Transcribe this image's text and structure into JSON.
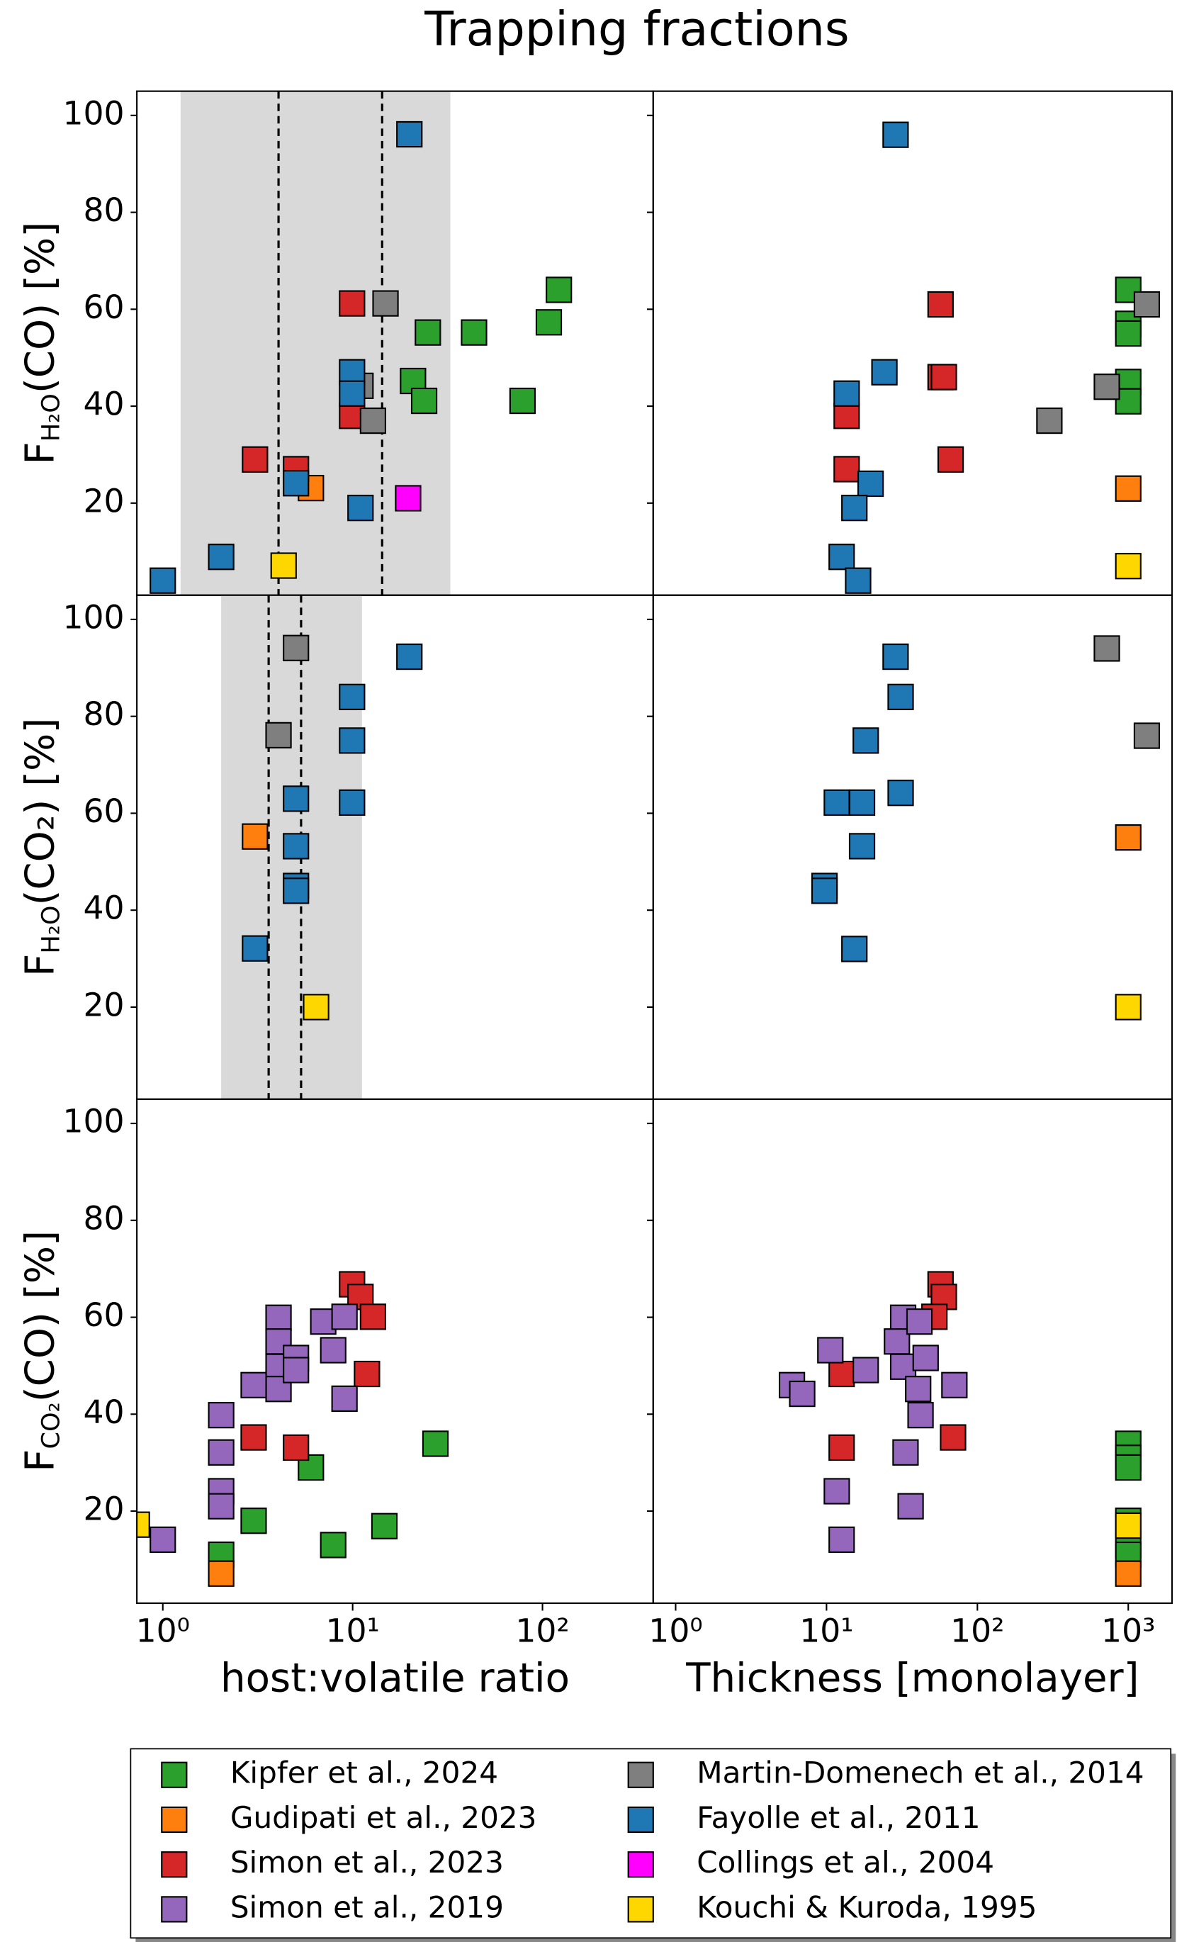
{
  "title": "Trapping fractions",
  "legend": [
    {
      "name": "Kipfer et al., 2024",
      "color": "#2ca02c"
    },
    {
      "name": "Gudipati et al., 2023",
      "color": "#ff7f0e"
    },
    {
      "name": "Simon et al., 2023",
      "color": "#d62728"
    },
    {
      "name": "Simon et al., 2019",
      "color": "#9467bd"
    },
    {
      "name": "Martin-Domenech et al., 2014",
      "color": "#7f7f7f"
    },
    {
      "name": "Fayolle et al., 2011",
      "color": "#1f77b4"
    },
    {
      "name": "Collings et al., 2004",
      "color": "#ff00ff"
    },
    {
      "name": "Kouchi & Kuroda, 1995",
      "color": "#ffd700"
    }
  ],
  "chart_data": [
    {
      "type": "scatter",
      "xlog": true,
      "xlim": [
        0.73,
        383
      ],
      "ylim": [
        1,
        105
      ],
      "yticks": [
        20,
        40,
        60,
        80,
        100
      ],
      "show_ytick_labels": true,
      "ylabel": {
        "main": "F",
        "sub": "H₂O",
        "rest": "(CO) [%]"
      },
      "shaded_region": [
        1.24,
        32.7
      ],
      "dashed_lines": [
        4.07,
        14.3
      ],
      "series": [
        {
          "name": "Kipfer et al., 2024",
          "color": "#2ca02c",
          "x": [
            122,
            108,
            43.6,
            24.9,
            20.8,
            23.8,
            78.5
          ],
          "values": [
            64,
            57.3,
            55.2,
            55.2,
            45.2,
            41.1,
            41.1
          ]
        },
        {
          "name": "Gudipati et al., 2023",
          "color": "#ff7f0e",
          "x": [
            6.03
          ],
          "values": [
            23.1
          ]
        },
        {
          "name": "Simon et al., 2023",
          "color": "#d62728",
          "x": [
            9.93,
            9.93,
            5.03,
            3.06
          ],
          "values": [
            61.2,
            38,
            27,
            29
          ]
        },
        {
          "name": "Martin-Domenech et al., 2014",
          "color": "#7f7f7f",
          "x": [
            14.9,
            11,
            12.8
          ],
          "values": [
            61.2,
            44.2,
            37
          ]
        },
        {
          "name": "Fayolle et al., 2011",
          "color": "#1f77b4",
          "x": [
            19.9,
            9.93,
            9.93,
            5.03,
            11,
            2.03,
            1
          ],
          "values": [
            96.1,
            47,
            42.6,
            24.1,
            19,
            8.9,
            4
          ]
        },
        {
          "name": "Collings et al., 2004",
          "color": "#ff00ff",
          "x": [
            19.6
          ],
          "values": [
            21
          ]
        },
        {
          "name": "Kouchi & Kuroda, 1995",
          "color": "#ffd700",
          "x": [
            4.33
          ],
          "values": [
            7.1
          ]
        }
      ]
    },
    {
      "type": "scatter",
      "xlog": true,
      "xlim": [
        0.71,
        1950
      ],
      "ylim": [
        1,
        105
      ],
      "yticks": [
        20,
        40,
        60,
        80,
        100
      ],
      "show_ytick_labels": false,
      "series": [
        {
          "name": "Kipfer et al., 2024",
          "color": "#2ca02c",
          "x": [
            1000,
            1000,
            1000,
            1000,
            1000
          ],
          "values": [
            64,
            57,
            55,
            45,
            41
          ]
        },
        {
          "name": "Gudipati et al., 2023",
          "color": "#ff7f0e",
          "x": [
            1000
          ],
          "values": [
            23
          ]
        },
        {
          "name": "Simon et al., 2023",
          "color": "#d62728",
          "x": [
            57,
            57,
            60,
            66.5,
            13.6,
            13.6
          ],
          "values": [
            61,
            46,
            46,
            29,
            38,
            27
          ]
        },
        {
          "name": "Martin-Domenech et al., 2014",
          "color": "#7f7f7f",
          "x": [
            1328,
            721,
            300
          ],
          "values": [
            61,
            44,
            37
          ]
        },
        {
          "name": "Fayolle et al., 2011",
          "color": "#1f77b4",
          "x": [
            28.7,
            24.2,
            13.6,
            19.6,
            15.3,
            12.6,
            16.2
          ],
          "values": [
            96,
            47,
            42.6,
            24,
            19,
            8.9,
            4
          ]
        },
        {
          "name": "Kouchi & Kuroda, 1995",
          "color": "#ffd700",
          "x": [
            1000
          ],
          "values": [
            7
          ]
        }
      ]
    },
    {
      "type": "scatter",
      "xlog": true,
      "xlim": [
        0.73,
        383
      ],
      "ylim": [
        1,
        105
      ],
      "yticks": [
        20,
        40,
        60,
        80,
        100
      ],
      "show_ytick_labels": true,
      "ylabel": {
        "main": "F",
        "sub": "H₂O",
        "rest": "(CO₂) [%]"
      },
      "shaded_region": [
        2.03,
        11.2
      ],
      "dashed_lines": [
        3.61,
        5.35
      ],
      "series": [
        {
          "name": "Gudipati et al., 2023",
          "color": "#ff7f0e",
          "x": [
            3.06
          ],
          "values": [
            55.2
          ]
        },
        {
          "name": "Martin-Domenech et al., 2014",
          "color": "#7f7f7f",
          "x": [
            5.03,
            4.07
          ],
          "values": [
            94.1,
            76.1
          ]
        },
        {
          "name": "Fayolle et al., 2011",
          "color": "#1f77b4",
          "x": [
            19.9,
            9.93,
            9.93,
            9.93,
            5.03,
            5.03,
            5.03,
            5.03,
            3.06
          ],
          "values": [
            92.3,
            84,
            75,
            62.2,
            63,
            53.2,
            45,
            44,
            32.1
          ]
        },
        {
          "name": "Kouchi & Kuroda, 1995",
          "color": "#ffd700",
          "x": [
            6.42
          ],
          "values": [
            20
          ]
        }
      ]
    },
    {
      "type": "scatter",
      "xlog": true,
      "xlim": [
        0.71,
        1950
      ],
      "ylim": [
        1,
        105
      ],
      "yticks": [
        20,
        40,
        60,
        80,
        100
      ],
      "show_ytick_labels": false,
      "series": [
        {
          "name": "Gudipati et al., 2023",
          "color": "#ff7f0e",
          "x": [
            1000
          ],
          "values": [
            55
          ]
        },
        {
          "name": "Martin-Domenech et al., 2014",
          "color": "#7f7f7f",
          "x": [
            721,
            1328
          ],
          "values": [
            94,
            76
          ]
        },
        {
          "name": "Fayolle et al., 2011",
          "color": "#1f77b4",
          "x": [
            28.7,
            31,
            18.2,
            11.7,
            17.2,
            31,
            17.2,
            9.7,
            9.7,
            15.3
          ],
          "values": [
            92.3,
            84,
            75,
            62.2,
            62.2,
            64.2,
            53.2,
            45,
            44,
            32
          ]
        },
        {
          "name": "Kouchi & Kuroda, 1995",
          "color": "#ffd700",
          "x": [
            1000
          ],
          "values": [
            20
          ]
        }
      ]
    },
    {
      "type": "scatter",
      "xlog": true,
      "xlim": [
        0.73,
        383
      ],
      "ylim": [
        1,
        105
      ],
      "yticks": [
        20,
        40,
        60,
        80,
        100
      ],
      "show_ytick_labels": true,
      "xticks": [
        {
          "value": 1,
          "label": "10⁰"
        },
        {
          "value": 10,
          "label": "10¹"
        },
        {
          "value": 100,
          "label": "10²"
        }
      ],
      "xlabel": "host:volatile ratio",
      "ylabel": {
        "main": "F",
        "sub": "CO₂",
        "rest": "(CO) [%]"
      },
      "series": [
        {
          "name": "Kipfer et al., 2024",
          "color": "#2ca02c",
          "x": [
            27.3,
            6.03,
            3.01,
            14.7,
            7.9,
            2.03
          ],
          "values": [
            33.9,
            29,
            18,
            16.9,
            13,
            11
          ]
        },
        {
          "name": "Gudipati et al., 2023",
          "color": "#ff7f0e",
          "x": [
            2.03
          ],
          "values": [
            7.1
          ]
        },
        {
          "name": "Simon et al., 2023",
          "color": "#d62728",
          "x": [
            9.93,
            11,
            12.8,
            11.9,
            5.03,
            3.01
          ],
          "values": [
            66.8,
            64.2,
            60.1,
            48.3,
            33.1,
            35.2
          ]
        },
        {
          "name": "Simon et al., 2019",
          "color": "#9467bd",
          "x": [
            4.07,
            4.07,
            4.07,
            4.07,
            3.01,
            2.03,
            2.03,
            2.03,
            2.03,
            1,
            5.03,
            5.03,
            7,
            7.9,
            9.06,
            9.06
          ],
          "values": [
            59.9,
            55,
            49.8,
            45.2,
            46,
            39.8,
            32.1,
            24.1,
            21,
            14.1,
            51.6,
            49.1,
            59.1,
            53.2,
            60.1,
            43.2
          ]
        },
        {
          "name": "Kouchi & Kuroda, 1995",
          "color": "#ffd700",
          "x": [
            0.73
          ],
          "values": [
            17.2
          ]
        }
      ]
    },
    {
      "type": "scatter",
      "xlog": true,
      "xlim": [
        0.71,
        1950
      ],
      "ylim": [
        1,
        105
      ],
      "yticks": [
        20,
        40,
        60,
        80,
        100
      ],
      "show_ytick_labels": false,
      "xticks": [
        {
          "value": 1,
          "label": "10⁰"
        },
        {
          "value": 10,
          "label": "10¹"
        },
        {
          "value": 100,
          "label": "10²"
        },
        {
          "value": 1000,
          "label": "10³"
        }
      ],
      "xlabel": "Thickness [monolayer]",
      "series": [
        {
          "name": "Kipfer et al., 2024",
          "color": "#2ca02c",
          "x": [
            1000,
            1000,
            1000,
            1000,
            1000,
            1000
          ],
          "values": [
            33.9,
            31,
            29,
            18,
            13,
            11
          ]
        },
        {
          "name": "Gudipati et al., 2023",
          "color": "#ff7f0e",
          "x": [
            1000
          ],
          "values": [
            7.1
          ]
        },
        {
          "name": "Simon et al., 2023",
          "color": "#d62728",
          "x": [
            57,
            60,
            51.9,
            12.6,
            12.6,
            69
          ],
          "values": [
            66.8,
            64.2,
            60.1,
            48.3,
            33.1,
            35.2
          ]
        },
        {
          "name": "Simon et al., 2019",
          "color": "#9467bd",
          "x": [
            32.2,
            29.3,
            32.2,
            40.5,
            42,
            33.4,
            11.7,
            36.1,
            12.6,
            5.9,
            6.9,
            10.6,
            18.2,
            45.4,
            41.3,
            70.4
          ],
          "values": [
            59.9,
            55,
            49.8,
            45.2,
            39.8,
            32.1,
            24.1,
            21,
            14.1,
            46,
            44.2,
            53.2,
            49.1,
            51.6,
            59.1,
            46
          ]
        },
        {
          "name": "Kouchi & Kuroda, 1995",
          "color": "#ffd700",
          "x": [
            1000
          ],
          "values": [
            17
          ]
        }
      ]
    }
  ]
}
